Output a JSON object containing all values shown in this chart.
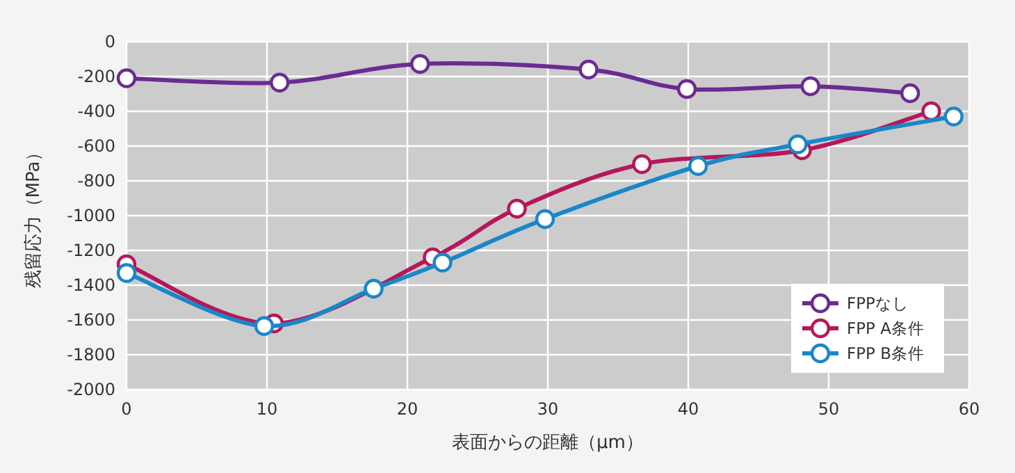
{
  "chart_data": {
    "type": "line",
    "xlabel": "表面からの距離（μm）",
    "ylabel": "残留応力（MPa）",
    "xlim": [
      0,
      60
    ],
    "xticks": [
      0,
      10,
      20,
      30,
      40,
      50,
      60
    ],
    "ylim": [
      -2000,
      0
    ],
    "yticks": [
      -2000,
      -1800,
      -1600,
      -1400,
      -1200,
      -1000,
      -800,
      -600,
      -400,
      -200,
      0
    ],
    "grid": true,
    "legend": "bottom right",
    "marker": "circle",
    "line_style": "solid",
    "series": [
      {
        "name": "FPPなし",
        "color": "#6a2c91",
        "x": [
          0,
          10.9,
          20.9,
          32.9,
          39.9,
          48.7,
          55.8
        ],
        "values": [
          -210,
          -235,
          -128,
          -160,
          -272,
          -256,
          -296
        ]
      },
      {
        "name": "FPP A条件",
        "color": "#b5185a",
        "x": [
          0,
          10.5,
          21.8,
          27.8,
          36.7,
          48.1,
          57.3
        ],
        "values": [
          -1280,
          -1620,
          -1240,
          -960,
          -704,
          -624,
          -400
        ]
      },
      {
        "name": "FPP B条件",
        "color": "#1a87c8",
        "x": [
          0,
          9.8,
          17.6,
          22.5,
          29.8,
          40.7,
          47.8,
          58.9
        ],
        "values": [
          -1330,
          -1635,
          -1420,
          -1270,
          -1020,
          -715,
          -590,
          -430
        ]
      }
    ]
  }
}
